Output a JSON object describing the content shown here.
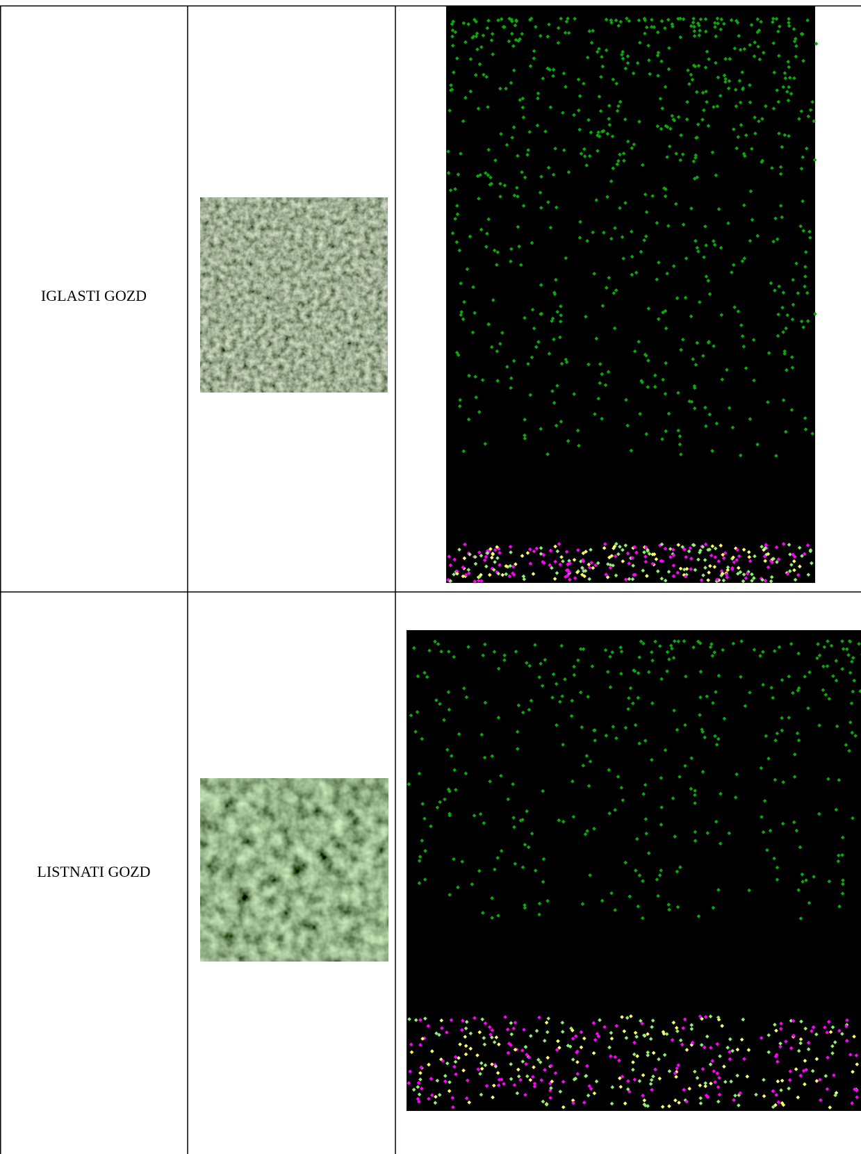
{
  "table": {
    "rows": [
      [
        "IGLASTI GOZD"
      ],
      [
        "LISTNATI GOZD"
      ]
    ]
  }
}
